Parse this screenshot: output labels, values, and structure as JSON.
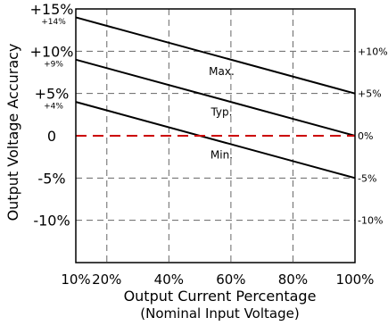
{
  "chart_data": {
    "type": "line",
    "xlabel": "Output Current Percentage",
    "xlabel_sub": "(Nominal Input Voltage)",
    "ylabel": "Output Voltage Accuracy",
    "xlim": [
      10,
      100
    ],
    "ylim": [
      -15,
      15
    ],
    "grid": true,
    "x_ticks": [
      {
        "value": 10,
        "label": "10%"
      },
      {
        "value": 20,
        "label": "20%"
      },
      {
        "value": 40,
        "label": "40%"
      },
      {
        "value": 60,
        "label": "60%"
      },
      {
        "value": 80,
        "label": "80%"
      },
      {
        "value": 100,
        "label": "100%"
      }
    ],
    "y_ticks_left": [
      {
        "value": 15,
        "label": "+15%",
        "sub": "+14%"
      },
      {
        "value": 10,
        "label": "+10%",
        "sub": "+9%"
      },
      {
        "value": 5,
        "label": "+5%",
        "sub": "+4%"
      },
      {
        "value": 0,
        "label": "0",
        "sub": ""
      },
      {
        "value": -5,
        "label": "-5%",
        "sub": ""
      },
      {
        "value": -10,
        "label": "-10%",
        "sub": ""
      }
    ],
    "y_ticks_right": [
      {
        "value": 10,
        "label": "+10%"
      },
      {
        "value": 5,
        "label": "+5%"
      },
      {
        "value": 0,
        "label": "0%"
      },
      {
        "value": -5,
        "label": "-5%"
      },
      {
        "value": -10,
        "label": "-10%"
      }
    ],
    "series": [
      {
        "name": "Max.",
        "x": [
          10,
          100
        ],
        "y": [
          14,
          5
        ],
        "color": "#000000",
        "dash": false,
        "label_x": 57,
        "label_y": 7.2
      },
      {
        "name": "Typ.",
        "x": [
          10,
          100
        ],
        "y": [
          9,
          0
        ],
        "color": "#000000",
        "dash": false,
        "label_x": 57,
        "label_y": 2.4
      },
      {
        "name": "Min.",
        "x": [
          10,
          100
        ],
        "y": [
          4,
          -5
        ],
        "color": "#000000",
        "dash": false,
        "label_x": 57,
        "label_y": -2.7
      },
      {
        "name": "",
        "x": [
          10,
          100
        ],
        "y": [
          0,
          0
        ],
        "color": "#cc0000",
        "dash": true,
        "label_x": null,
        "label_y": null
      }
    ]
  }
}
